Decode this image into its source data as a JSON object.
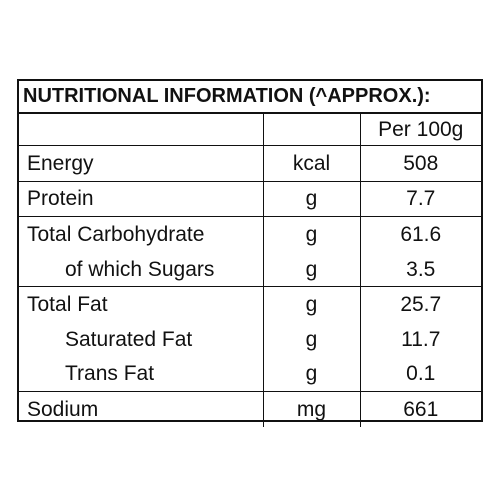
{
  "title": "NUTRITIONAL INFORMATION (^APPROX.):",
  "header": {
    "name": "",
    "unit": "",
    "value": "Per 100g"
  },
  "rows": [
    {
      "name": "Energy",
      "unit": "kcal",
      "value": "508"
    },
    {
      "name": "Protein",
      "unit": "g",
      "value": "7.7"
    },
    {
      "name": "Total Carbohydrate",
      "unit": "g",
      "value": "61.6"
    },
    {
      "name": "of which Sugars",
      "unit": "g",
      "value": "3.5"
    },
    {
      "name": "Total Fat",
      "unit": "g",
      "value": "25.7"
    },
    {
      "name": "Saturated Fat",
      "unit": "g",
      "value": "11.7"
    },
    {
      "name": "Trans Fat",
      "unit": "g",
      "value": "0.1"
    },
    {
      "name": "Sodium",
      "unit": "mg",
      "value": "661"
    }
  ]
}
